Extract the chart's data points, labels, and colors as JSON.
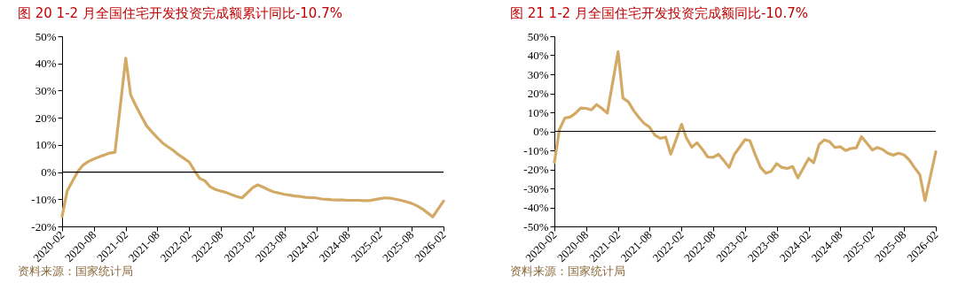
{
  "chart_data": [
    {
      "type": "line",
      "title": "图 20 1-2 月全国住宅开发投资完成额累计同比-10.7%",
      "annotations": [
        "资料来源：国家统计局"
      ],
      "x": [
        "2020-02",
        "2020-03",
        "2020-04",
        "2020-05",
        "2020-06",
        "2020-07",
        "2020-08",
        "2020-09",
        "2020-10",
        "2020-11",
        "2020-12",
        "2021-02",
        "2021-03",
        "2021-04",
        "2021-05",
        "2021-06",
        "2021-07",
        "2021-08",
        "2021-09",
        "2021-10",
        "2021-11",
        "2021-12",
        "2022-02",
        "2022-03",
        "2022-04",
        "2022-05",
        "2022-06",
        "2022-07",
        "2022-08",
        "2022-09",
        "2022-10",
        "2022-11",
        "2022-12",
        "2023-02",
        "2023-03",
        "2023-04",
        "2023-05",
        "2023-06",
        "2023-07",
        "2023-08",
        "2023-09",
        "2023-10",
        "2023-11",
        "2023-12",
        "2024-02",
        "2024-03",
        "2024-04",
        "2024-05",
        "2024-06",
        "2024-07",
        "2024-08",
        "2024-09",
        "2024-10",
        "2024-11",
        "2024-12",
        "2025-02",
        "2025-03",
        "2025-04",
        "2025-05",
        "2025-06",
        "2025-07",
        "2025-08",
        "2025-09",
        "2025-10",
        "2025-11",
        "2025-12",
        "2026-02"
      ],
      "series": [
        {
          "color": "#d2a965",
          "values": [
            -16.3,
            -7,
            -3.3,
            0.2,
            2.6,
            3.9,
            4.8,
            5.6,
            6.3,
            7.0,
            7.3,
            41.9,
            28.4,
            24.3,
            20.6,
            17.0,
            14.8,
            12.7,
            10.7,
            9.3,
            8.0,
            6.4,
            3.7,
            0.7,
            -2.3,
            -3.2,
            -5.4,
            -6.4,
            -7.0,
            -7.5,
            -8.3,
            -9.0,
            -9.5,
            -5.7,
            -4.7,
            -5.5,
            -6.5,
            -7.3,
            -7.7,
            -8.2,
            -8.5,
            -8.8,
            -9.0,
            -9.3,
            -9.5,
            -9.9,
            -10.0,
            -10.2,
            -10.3,
            -10.3,
            -10.4,
            -10.4,
            -10.4,
            -10.5,
            -10.5,
            -9.8,
            -9.5,
            -9.6,
            -10.0,
            -10.4,
            -10.9,
            -11.5,
            -12.4,
            -13.5,
            -15.0,
            -16.5,
            -10.7
          ]
        }
      ],
      "xlim": [
        "2020-02",
        "2026-02"
      ],
      "xticks": [
        "2020-02",
        "2020-08",
        "2021-02",
        "2021-08",
        "2022-02",
        "2022-08",
        "2023-02",
        "2023-08",
        "2024-02",
        "2024-08",
        "2025-02",
        "2025-08",
        "2026-02"
      ],
      "ref_lines": [
        {
          "axis": "y",
          "value": 0,
          "color": "#000000"
        }
      ],
      "ylim": [
        -20,
        50
      ],
      "yticks": [
        {
          "value": -20,
          "label": "-20%"
        },
        {
          "value": -10,
          "label": "-10%"
        },
        {
          "value": 0,
          "label": "0%"
        },
        {
          "value": 10,
          "label": "10%"
        },
        {
          "value": 20,
          "label": "20%"
        },
        {
          "value": 30,
          "label": "30%"
        },
        {
          "value": 40,
          "label": "40%"
        },
        {
          "value": 50,
          "label": "50%"
        }
      ],
      "grid": false,
      "legend": false,
      "marker": "none",
      "line_style": "solid"
    },
    {
      "type": "line",
      "title": "图 21 1-2 月全国住宅开发投资完成额同比-10.7%",
      "annotations": [
        "资料来源：国家统计局"
      ],
      "x": [
        "2020-02",
        "2020-03",
        "2020-04",
        "2020-05",
        "2020-06",
        "2020-07",
        "2020-08",
        "2020-09",
        "2020-10",
        "2020-11",
        "2020-12",
        "2021-02",
        "2021-03",
        "2021-04",
        "2021-05",
        "2021-06",
        "2021-07",
        "2021-08",
        "2021-09",
        "2021-10",
        "2021-11",
        "2021-12",
        "2022-02",
        "2022-03",
        "2022-04",
        "2022-05",
        "2022-06",
        "2022-07",
        "2022-08",
        "2022-09",
        "2022-10",
        "2022-11",
        "2022-12",
        "2023-02",
        "2023-03",
        "2023-04",
        "2023-05",
        "2023-06",
        "2023-07",
        "2023-08",
        "2023-09",
        "2023-10",
        "2023-11",
        "2023-12",
        "2024-02",
        "2024-03",
        "2024-04",
        "2024-05",
        "2024-06",
        "2024-07",
        "2024-08",
        "2024-09",
        "2024-10",
        "2024-11",
        "2024-12",
        "2025-02",
        "2025-03",
        "2025-04",
        "2025-05",
        "2025-06",
        "2025-07",
        "2025-08",
        "2025-09",
        "2025-10",
        "2025-11",
        "2025-12",
        "2026-02"
      ],
      "series": [
        {
          "color": "#d2a965",
          "values": [
            -16.3,
            1,
            7,
            7.5,
            9.5,
            12.3,
            12.1,
            11.3,
            14.1,
            12.0,
            9.6,
            41.9,
            17.5,
            15.5,
            11.0,
            7.2,
            4.2,
            2.2,
            -2,
            -3.7,
            -3.0,
            -12,
            3.7,
            -3.6,
            -8.3,
            -6.0,
            -9.5,
            -13.5,
            -13.7,
            -12.1,
            -15.3,
            -19,
            -12.2,
            -4.3,
            -5,
            -12.5,
            -19,
            -22,
            -21,
            -17,
            -19,
            -19.5,
            -18.5,
            -24.5,
            -14.3,
            -16.5,
            -7,
            -4.5,
            -5.5,
            -8.5,
            -8.1,
            -10.1,
            -9,
            -8.7,
            -2.8,
            -9.8,
            -8.5,
            -9.5,
            -11.5,
            -12.5,
            -11.5,
            -12.3,
            -15,
            -19,
            -22.8,
            -36.5,
            -10.7
          ]
        }
      ],
      "xlim": [
        "2020-02",
        "2026-02"
      ],
      "xticks": [
        "2020-02",
        "2020-08",
        "2021-02",
        "2021-08",
        "2022-02",
        "2022-08",
        "2023-02",
        "2023-08",
        "2024-02",
        "2024-08",
        "2025-02",
        "2025-08",
        "2026-02"
      ],
      "ref_lines": [
        {
          "axis": "y",
          "value": 0,
          "color": "#000000"
        }
      ],
      "ylim": [
        -50,
        50
      ],
      "yticks": [
        {
          "value": -50,
          "label": "-50%"
        },
        {
          "value": -40,
          "label": "-40%"
        },
        {
          "value": -30,
          "label": "-30%"
        },
        {
          "value": -20,
          "label": "-20%"
        },
        {
          "value": -10,
          "label": "-10%"
        },
        {
          "value": 0,
          "label": "0%"
        },
        {
          "value": 10,
          "label": "10%"
        },
        {
          "value": 20,
          "label": "20%"
        },
        {
          "value": 30,
          "label": "30%"
        },
        {
          "value": 40,
          "label": "40%"
        },
        {
          "value": 50,
          "label": "50%"
        }
      ],
      "grid": false,
      "legend": false,
      "marker": "none",
      "line_style": "solid"
    }
  ]
}
